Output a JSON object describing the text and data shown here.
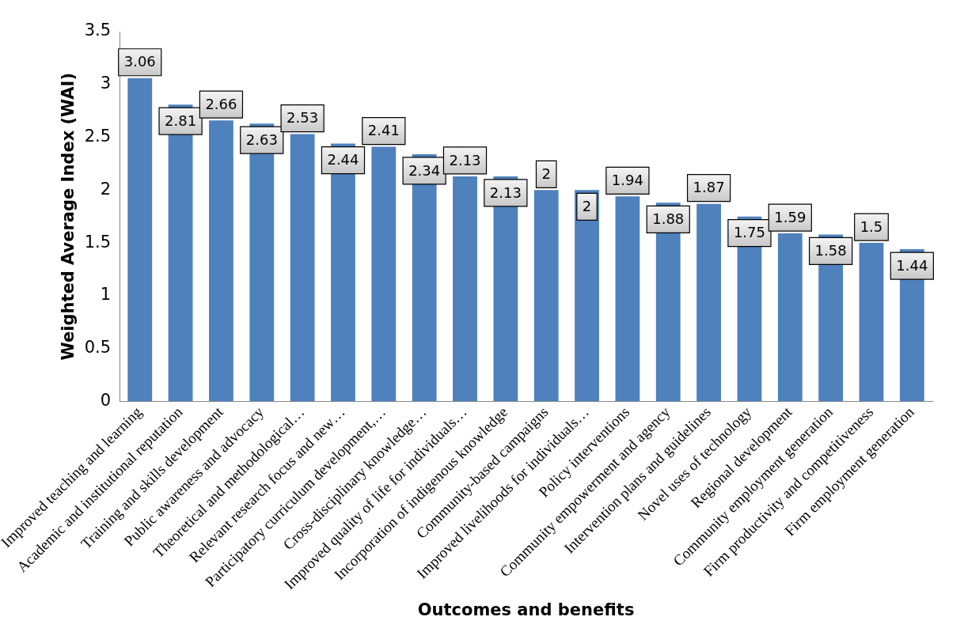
{
  "chart_data": {
    "type": "bar",
    "xlabel": "Outcomes and benefits",
    "ylabel": "Weighted Average Index (WAI)",
    "categories": [
      "Improved teaching and learning",
      "Academic and institutional reputation",
      "Training and skills development",
      "Public awareness and advocacy",
      "Theoretical and methodological…",
      "Relevant research focus and new…",
      "Participatory curriculum development,…",
      "Cross-disciplinary knowledge…",
      "Improved quality of life for individuals…",
      "Incorporation of indigenous knowledge",
      "Community-based campaigns",
      "Improved livelihoods for individuals…",
      "Policy interventions",
      "Community empowerment and agency",
      "Intervention plans and guidelines",
      "Novel uses of technology",
      "Regional development",
      "Community employment generation",
      "Firm productivity and competitiveness",
      "Firm employment generation"
    ],
    "values": [
      3.06,
      2.81,
      2.66,
      2.63,
      2.53,
      2.44,
      2.41,
      2.34,
      2.13,
      2.13,
      2,
      2,
      1.94,
      1.88,
      1.87,
      1.75,
      1.59,
      1.58,
      1.5,
      1.44
    ],
    "color": "#4f81bd",
    "ylim": [
      0,
      3.5
    ],
    "yticks": [
      0,
      0.5,
      1,
      1.5,
      2,
      2.5,
      3,
      3.5
    ],
    "grid": false,
    "legend": false,
    "data_labels": true
  }
}
